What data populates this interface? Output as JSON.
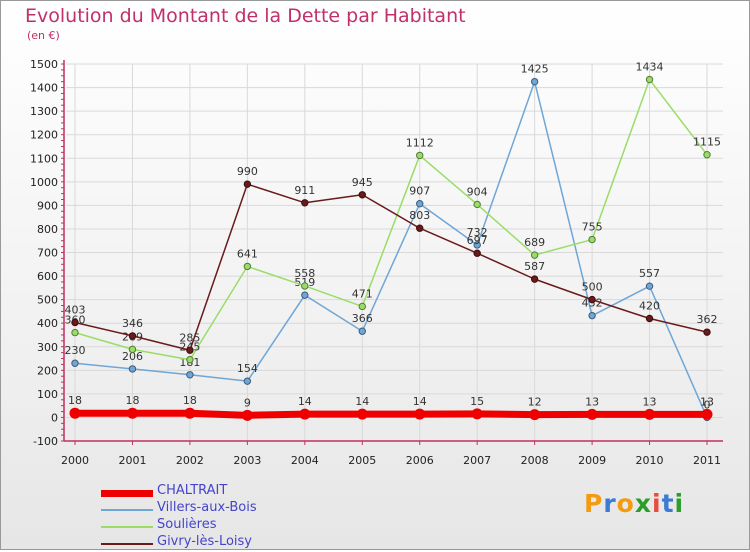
{
  "title": "Evolution du Montant de la Dette par Habitant",
  "subtitle": "(en €)",
  "logo": {
    "text": "Proxiti",
    "letters": [
      "P",
      "r",
      "o",
      "x",
      "i",
      "t",
      "i"
    ],
    "colors": [
      "#f39c12",
      "#3a7bd5",
      "#f39c12",
      "#2a9d2a",
      "#e74c3c",
      "#3a7bd5",
      "#2a9d2a"
    ]
  },
  "chart_data": {
    "type": "line",
    "title": "Evolution du Montant de la Dette par Habitant",
    "subtitle": "(en €)",
    "x": [
      "2000",
      "2001",
      "2002",
      "2003",
      "2004",
      "2005",
      "2006",
      "2007",
      "2008",
      "2009",
      "2010",
      "2011"
    ],
    "ylim": [
      -100,
      1500
    ],
    "yticks": [
      -100,
      0,
      100,
      200,
      300,
      400,
      500,
      600,
      700,
      800,
      900,
      1000,
      1100,
      1200,
      1300,
      1400,
      1500
    ],
    "grid": true,
    "legend_position": "bottom-left",
    "series": [
      {
        "name": "CHALTRAIT",
        "color": "#ee0000",
        "values": [
          18,
          18,
          18,
          9,
          14,
          14,
          14,
          15,
          12,
          13,
          13,
          13
        ]
      },
      {
        "name": "Villers-aux-Bois",
        "color": "#6fa6d6",
        "values": [
          230,
          206,
          181,
          154,
          519,
          366,
          907,
          732,
          1425,
          432,
          557,
          0
        ]
      },
      {
        "name": "Soulières",
        "color": "#99dd66",
        "values": [
          360,
          289,
          245,
          641,
          558,
          471,
          1112,
          904,
          689,
          755,
          1434,
          1115
        ]
      },
      {
        "name": "Givry-lès-Loisy",
        "color": "#6a1a1a",
        "values": [
          403,
          346,
          285,
          990,
          911,
          945,
          803,
          697,
          587,
          500,
          420,
          362
        ]
      }
    ]
  }
}
